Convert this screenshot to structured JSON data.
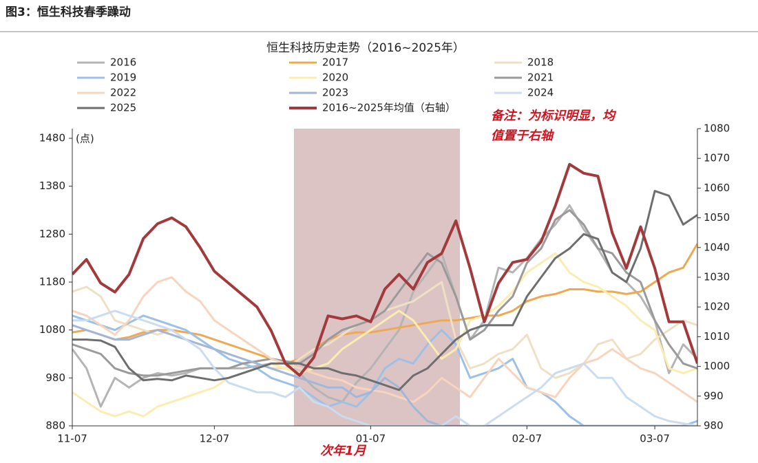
{
  "header": "图3：恒生科技春季躁动",
  "chart_data": {
    "type": "line",
    "title": "恒生科技历史走势（2016~2025年）",
    "y_unit": "(点)",
    "annotations": [
      "备注：为标识明显，均",
      "值置于右轴",
      "次年1月"
    ],
    "categories": [
      "11-07",
      null,
      null,
      null,
      null,
      null,
      null,
      null,
      null,
      null,
      "12-07",
      null,
      null,
      null,
      null,
      null,
      null,
      null,
      null,
      null,
      null,
      "01-07",
      null,
      null,
      null,
      null,
      null,
      null,
      null,
      null,
      null,
      null,
      "02-07",
      null,
      null,
      null,
      null,
      null,
      null,
      null,
      null,
      "03-07",
      null,
      null,
      null
    ],
    "ylim": [
      880,
      1480
    ],
    "yticks": [
      880,
      980,
      1080,
      1180,
      1280,
      1380,
      1480
    ],
    "y2lim": [
      980,
      1080
    ],
    "y2ticks": [
      980,
      990,
      1000,
      1010,
      1020,
      1030,
      1040,
      1050,
      1060,
      1070,
      1080
    ],
    "series": [
      {
        "name": "2016",
        "color": "#b4b4b4",
        "values": [
          1040,
          1000,
          920,
          980,
          960,
          980,
          990,
          985,
          990,
          1000,
          1000,
          1000,
          1000,
          1005,
          1010,
          1000,
          990,
          960,
          940,
          930,
          970,
          1000,
          1040,
          1080,
          1160,
          1200,
          1240,
          1150,
          1060,
          1100,
          1210,
          1200,
          1230,
          1270,
          1300,
          1340,
          1290,
          1250,
          1200,
          1180,
          1150,
          1100,
          990,
          1050,
          1020
        ]
      },
      {
        "name": "2017",
        "color": "#f0a850",
        "values": [
          1075,
          1080,
          1070,
          1060,
          1065,
          1075,
          1080,
          1080,
          1075,
          1070,
          1060,
          1050,
          1040,
          1030,
          1020,
          1010,
          1020,
          1040,
          1060,
          1070,
          1075,
          1075,
          1080,
          1085,
          1090,
          1095,
          1100,
          1100,
          1105,
          1110,
          1110,
          1120,
          1140,
          1150,
          1155,
          1165,
          1165,
          1160,
          1160,
          1155,
          1160,
          1180,
          1200,
          1210,
          1260
        ]
      },
      {
        "name": "2018",
        "color": "#eee0c4",
        "values": [
          1160,
          1170,
          1150,
          1100,
          1090,
          1080,
          1070,
          1080,
          1060,
          1050,
          1040,
          1030,
          1020,
          1010,
          1000,
          1000,
          1020,
          1040,
          1050,
          1070,
          1090,
          1100,
          1120,
          1130,
          1140,
          1160,
          1180,
          1060,
          1000,
          1010,
          1030,
          1040,
          1070,
          1000,
          980,
          990,
          1010,
          1050,
          1060,
          1020,
          1030,
          1060,
          1080,
          1100,
          1090
        ]
      },
      {
        "name": "2019",
        "color": "#9cc0e8",
        "values": [
          1110,
          1100,
          1090,
          1080,
          1095,
          1110,
          1100,
          1090,
          1080,
          1060,
          1040,
          1020,
          1010,
          1000,
          980,
          970,
          960,
          940,
          920,
          930,
          920,
          950,
          1000,
          1020,
          1010,
          1050,
          1080,
          1050,
          980,
          990,
          1000,
          1020,
          960,
          950,
          930,
          900,
          880,
          880,
          880,
          880,
          880,
          880,
          880,
          880,
          890
        ]
      },
      {
        "name": "2020",
        "color": "#fbecb0",
        "values": [
          950,
          930,
          910,
          900,
          910,
          900,
          920,
          930,
          940,
          950,
          960,
          980,
          990,
          1000,
          1010,
          1000,
          990,
          1000,
          1010,
          1040,
          1060,
          1080,
          1100,
          1120,
          1100,
          1060,
          1020,
          1040,
          1100,
          1110,
          1130,
          1160,
          1200,
          1220,
          1240,
          1200,
          1180,
          1170,
          1150,
          1130,
          1100,
          1080,
          1000,
          990,
          1000
        ]
      },
      {
        "name": "2021",
        "color": "#9a9a9a",
        "values": [
          1050,
          1040,
          1030,
          1000,
          990,
          985,
          985,
          990,
          995,
          1000,
          1000,
          1000,
          1010,
          1015,
          1020,
          1015,
          1010,
          1030,
          1060,
          1080,
          1090,
          1100,
          1120,
          1160,
          1200,
          1240,
          1220,
          1150,
          1060,
          1080,
          1120,
          1150,
          1220,
          1250,
          1310,
          1330,
          1300,
          1250,
          1240,
          1200,
          1180,
          1100,
          1050,
          1010,
          1000
        ]
      },
      {
        "name": "2022",
        "color": "#f8d4bc",
        "values": [
          1120,
          1110,
          1090,
          1070,
          1100,
          1150,
          1180,
          1190,
          1160,
          1140,
          1100,
          1080,
          1060,
          1040,
          1020,
          1010,
          1000,
          990,
          980,
          975,
          960,
          955,
          950,
          940,
          930,
          950,
          980,
          960,
          940,
          980,
          1020,
          990,
          960,
          950,
          940,
          980,
          1010,
          1020,
          1040,
          1020,
          1000,
          990,
          970,
          950,
          930
        ]
      },
      {
        "name": "2023",
        "color": "#a2b6d8",
        "values": [
          1090,
          1080,
          1070,
          1060,
          1060,
          1070,
          1080,
          1070,
          1060,
          1050,
          1040,
          1030,
          1020,
          1010,
          1000,
          990,
          980,
          970,
          960,
          960,
          940,
          950,
          980,
          960,
          920,
          890,
          880,
          880,
          880,
          880,
          880,
          880,
          880,
          880,
          880,
          880,
          880,
          880,
          880,
          880,
          880,
          880,
          880,
          880,
          880
        ]
      },
      {
        "name": "2024",
        "color": "#cadcf0",
        "values": [
          1100,
          1100,
          1110,
          1120,
          1110,
          1100,
          1090,
          1080,
          1060,
          1040,
          1000,
          970,
          960,
          950,
          950,
          940,
          960,
          930,
          920,
          900,
          890,
          880,
          880,
          880,
          880,
          880,
          880,
          900,
          880,
          880,
          900,
          920,
          940,
          960,
          990,
          1000,
          1010,
          980,
          980,
          940,
          920,
          900,
          890,
          885,
          880
        ]
      },
      {
        "name": "2025",
        "color": "#6e6e6e",
        "values": [
          1060,
          1060,
          1058,
          1045,
          1000,
          975,
          978,
          975,
          985,
          980,
          975,
          980,
          990,
          1000,
          1010,
          1010,
          1010,
          1000,
          1000,
          990,
          985,
          975,
          965,
          955,
          985,
          1000,
          1030,
          1060,
          1080,
          1090,
          1090,
          1090,
          1150,
          1190,
          1230,
          1250,
          1280,
          1270,
          1200,
          1180,
          1250,
          1370,
          1360,
          1300,
          1320
        ]
      },
      {
        "name": "2016~2025年均值（右轴）",
        "color": "#a23a3c",
        "axis": "y2",
        "values": [
          1031,
          1036,
          1028,
          1025,
          1031,
          1043,
          1048,
          1050,
          1047,
          1040,
          1032,
          1028,
          1024,
          1020,
          1012,
          1001,
          997,
          1003,
          1017,
          1016,
          1017,
          1015,
          1026,
          1031,
          1026,
          1035,
          1038,
          1049,
          1033,
          1015,
          1028,
          1035,
          1036,
          1042,
          1054,
          1068,
          1065,
          1064,
          1045,
          1033,
          1047,
          1033,
          1015,
          1015,
          1001
        ]
      }
    ]
  }
}
